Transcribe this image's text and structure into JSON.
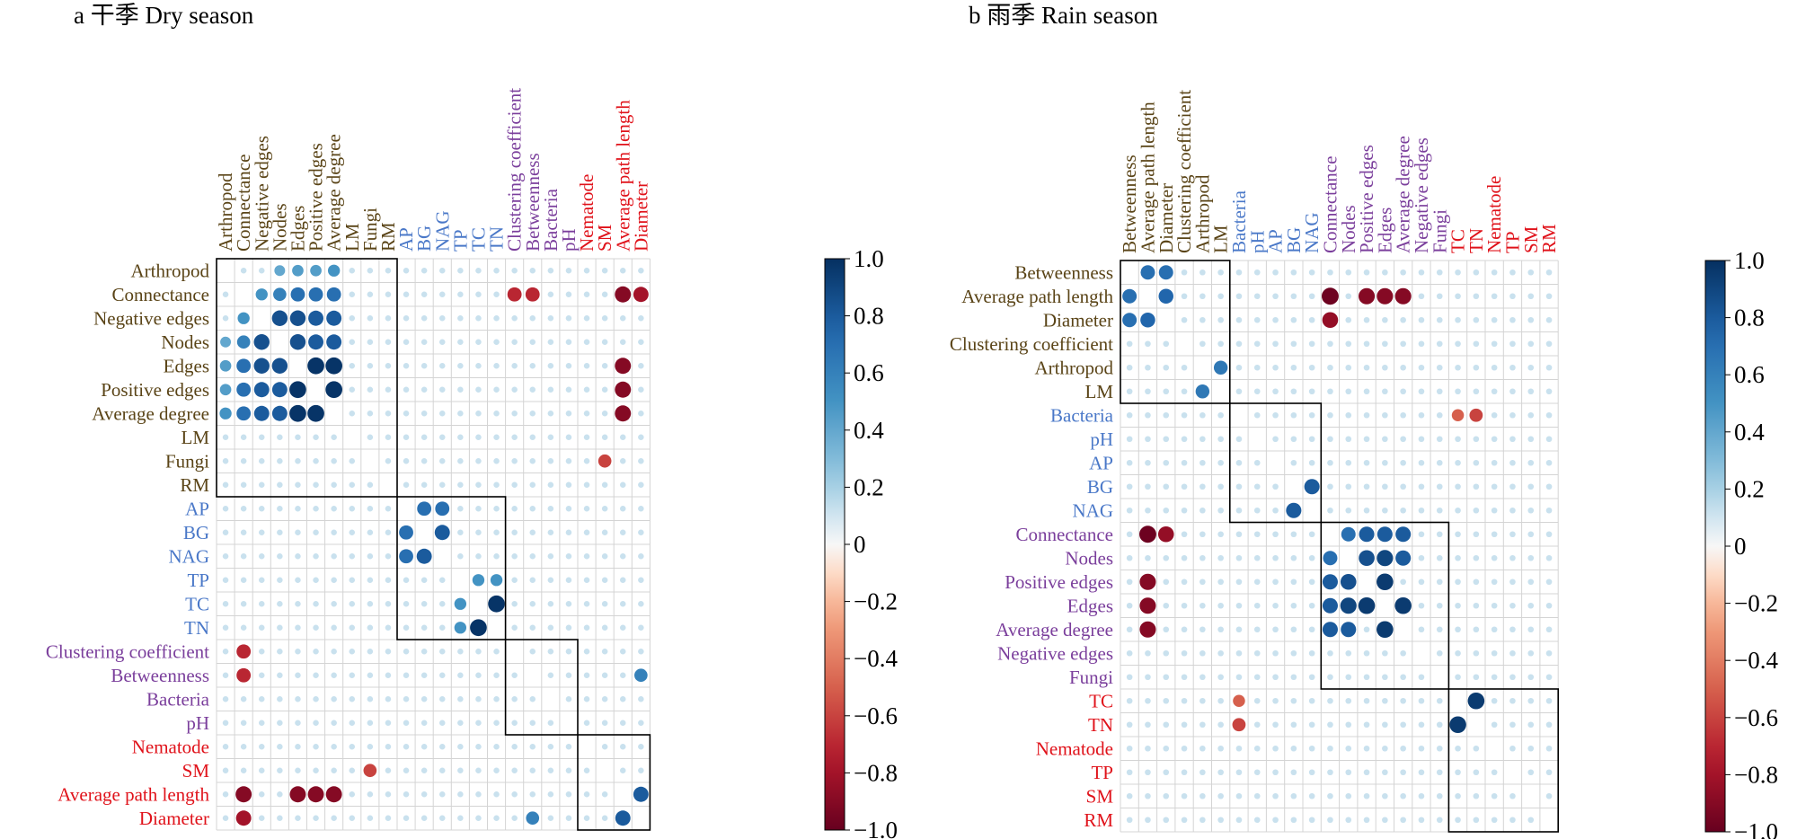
{
  "panels": [
    {
      "title": "a 干季 Dry season",
      "labels": [
        "Arthropod",
        "Connectance",
        "Negative edges",
        "Nodes",
        "Edges",
        "Positive edges",
        "Average degree",
        "LM",
        "Fungi",
        "RM",
        "AP",
        "BG",
        "NAG",
        "TP",
        "TC",
        "TN",
        "Clustering coefficient",
        "Betweenness",
        "Bacteria",
        "pH",
        "Nematode",
        "SM",
        "Average path length",
        "Diameter"
      ],
      "label_groups": [
        0,
        0,
        0,
        0,
        0,
        0,
        0,
        0,
        0,
        0,
        1,
        1,
        1,
        1,
        1,
        1,
        2,
        2,
        2,
        2,
        3,
        3,
        3,
        3
      ],
      "clusters": [
        [
          0,
          9
        ],
        [
          10,
          15
        ],
        [
          16,
          19
        ],
        [
          20,
          23
        ]
      ]
    },
    {
      "title": "b 雨季 Rain season",
      "labels": [
        "Betweenness",
        "Average path length",
        "Diameter",
        "Clustering coefficient",
        "Arthropod",
        "LM",
        "Bacteria",
        "pH",
        "AP",
        "BG",
        "NAG",
        "Connectance",
        "Nodes",
        "Positive edges",
        "Edges",
        "Average degree",
        "Negative edges",
        "Fungi",
        "TC",
        "TN",
        "Nematode",
        "TP",
        "SM",
        "RM"
      ],
      "label_groups": [
        0,
        0,
        0,
        0,
        0,
        0,
        1,
        1,
        1,
        1,
        1,
        2,
        2,
        2,
        2,
        2,
        2,
        2,
        3,
        3,
        3,
        3,
        3,
        3
      ],
      "clusters": [
        [
          0,
          5
        ],
        [
          6,
          10
        ],
        [
          11,
          17
        ],
        [
          18,
          23
        ]
      ]
    }
  ],
  "group_colors": [
    "#5a4417",
    "#4a78c8",
    "#7b3f9c",
    "#e0121a"
  ],
  "colorbar": {
    "ticks": [
      "1.0",
      "0.8",
      "0.6",
      "0.4",
      "0.2",
      "0",
      "−0.2",
      "−0.4",
      "−0.6",
      "−0.8",
      "−1.0"
    ]
  },
  "chart_data": [
    {
      "type": "heatmap",
      "title": "a 干季 Dry season",
      "variables": [
        "Arthropod",
        "Connectance",
        "Negative edges",
        "Nodes",
        "Edges",
        "Positive edges",
        "Average degree",
        "LM",
        "Fungi",
        "RM",
        "AP",
        "BG",
        "NAG",
        "TP",
        "TC",
        "TN",
        "Clustering coefficient",
        "Betweenness",
        "Bacteria",
        "pH",
        "Nematode",
        "SM",
        "Average path length",
        "Diameter"
      ],
      "value_range": [
        -1,
        1
      ],
      "correlations": [
        [
          "Connectance",
          "Negative edges",
          0.5
        ],
        [
          "Connectance",
          "Nodes",
          0.6
        ],
        [
          "Connectance",
          "Edges",
          0.7
        ],
        [
          "Connectance",
          "Positive edges",
          0.7
        ],
        [
          "Connectance",
          "Average degree",
          0.7
        ],
        [
          "Negative edges",
          "Nodes",
          0.85
        ],
        [
          "Negative edges",
          "Edges",
          0.85
        ],
        [
          "Negative edges",
          "Positive edges",
          0.8
        ],
        [
          "Negative edges",
          "Average degree",
          0.8
        ],
        [
          "Nodes",
          "Edges",
          0.85
        ],
        [
          "Nodes",
          "Positive edges",
          0.8
        ],
        [
          "Nodes",
          "Average degree",
          0.8
        ],
        [
          "Edges",
          "Positive edges",
          0.98
        ],
        [
          "Edges",
          "Average degree",
          0.98
        ],
        [
          "Positive edges",
          "Average degree",
          0.98
        ],
        [
          "Arthropod",
          "Nodes",
          0.4
        ],
        [
          "Arthropod",
          "Edges",
          0.45
        ],
        [
          "Arthropod",
          "Positive edges",
          0.45
        ],
        [
          "Arthropod",
          "Average degree",
          0.5
        ],
        [
          "AP",
          "BG",
          0.7
        ],
        [
          "AP",
          "NAG",
          0.7
        ],
        [
          "BG",
          "NAG",
          0.8
        ],
        [
          "TC",
          "TN",
          0.98
        ],
        [
          "TP",
          "TC",
          0.5
        ],
        [
          "TP",
          "TN",
          0.5
        ],
        [
          "Connectance",
          "Clustering coefficient",
          -0.7
        ],
        [
          "Connectance",
          "Betweenness",
          -0.7
        ],
        [
          "Connectance",
          "Average path length",
          -0.9
        ],
        [
          "Connectance",
          "Diameter",
          -0.8
        ],
        [
          "Edges",
          "Average path length",
          -0.9
        ],
        [
          "Positive edges",
          "Average path length",
          -0.9
        ],
        [
          "Average degree",
          "Average path length",
          -0.9
        ],
        [
          "Average path length",
          "Diameter",
          0.8
        ],
        [
          "Betweenness",
          "Diameter",
          0.6
        ],
        [
          "Fungi",
          "SM",
          -0.6
        ]
      ]
    },
    {
      "type": "heatmap",
      "title": "b 雨季 Rain season",
      "variables": [
        "Betweenness",
        "Average path length",
        "Diameter",
        "Clustering coefficient",
        "Arthropod",
        "LM",
        "Bacteria",
        "pH",
        "AP",
        "BG",
        "NAG",
        "Connectance",
        "Nodes",
        "Positive edges",
        "Edges",
        "Average degree",
        "Negative edges",
        "Fungi",
        "TC",
        "TN",
        "Nematode",
        "TP",
        "SM",
        "RM"
      ],
      "value_range": [
        -1,
        1
      ],
      "correlations": [
        [
          "Betweenness",
          "Average path length",
          0.7
        ],
        [
          "Betweenness",
          "Diameter",
          0.7
        ],
        [
          "Average path length",
          "Diameter",
          0.75
        ],
        [
          "Arthropod",
          "LM",
          0.65
        ],
        [
          "BG",
          "NAG",
          0.8
        ],
        [
          "TC",
          "TN",
          0.95
        ],
        [
          "Connectance",
          "Nodes",
          0.7
        ],
        [
          "Connectance",
          "Positive edges",
          0.8
        ],
        [
          "Connectance",
          "Edges",
          0.8
        ],
        [
          "Connectance",
          "Average degree",
          0.8
        ],
        [
          "Nodes",
          "Positive edges",
          0.85
        ],
        [
          "Nodes",
          "Edges",
          0.9
        ],
        [
          "Nodes",
          "Average degree",
          0.8
        ],
        [
          "Positive edges",
          "Edges",
          0.95
        ],
        [
          "Edges",
          "Average degree",
          0.95
        ],
        [
          "Average path length",
          "Connectance",
          -0.98
        ],
        [
          "Average path length",
          "Positive edges",
          -0.9
        ],
        [
          "Average path length",
          "Edges",
          -0.9
        ],
        [
          "Average path length",
          "Average degree",
          -0.9
        ],
        [
          "Diameter",
          "Connectance",
          -0.85
        ],
        [
          "Bacteria",
          "TC",
          -0.5
        ],
        [
          "Bacteria",
          "TN",
          -0.6
        ]
      ]
    }
  ]
}
